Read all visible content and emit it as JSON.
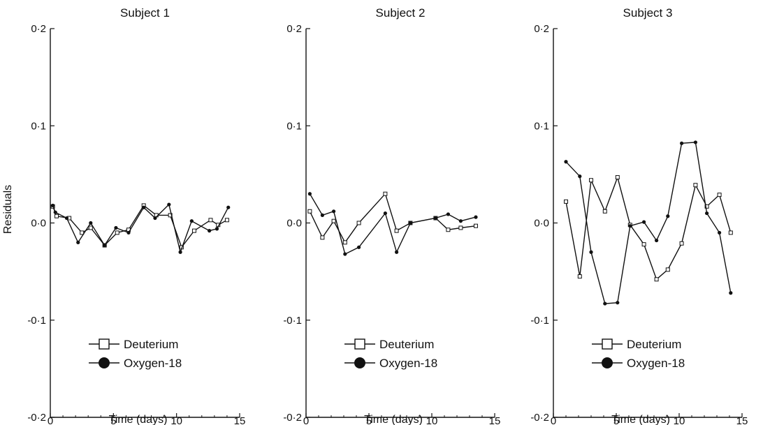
{
  "chart_data": {
    "type": "line",
    "ylabel": "Residuals",
    "xlabel": "Time (days)",
    "xlim": [
      0,
      15
    ],
    "ylim": [
      -0.2,
      0.2
    ],
    "x_ticks": [
      "0",
      "5",
      "10",
      "15"
    ],
    "y_ticks": [
      "-0·2",
      "-0·1",
      "0·0",
      "0·1",
      "0·2"
    ],
    "legend": {
      "placement": "bottom-right"
    },
    "line_color": "#111111",
    "panels": [
      {
        "title": "Subject 1",
        "series": [
          {
            "name": "Deuterium",
            "marker": "open-square",
            "x": [
              0.2,
              0.5,
              1.5,
              2.5,
              3.2,
              4.3,
              5.3,
              6.2,
              7.4,
              8.4,
              9.5,
              10.4,
              11.4,
              12.7,
              13.3,
              14.0
            ],
            "y": [
              0.017,
              0.007,
              0.005,
              -0.01,
              -0.005,
              -0.023,
              -0.01,
              -0.007,
              0.018,
              0.008,
              0.008,
              -0.025,
              -0.008,
              0.003,
              -0.002,
              0.003
            ]
          },
          {
            "name": "Oxygen-18",
            "marker": "filled-circle",
            "x": [
              0.2,
              0.4,
              1.3,
              2.2,
              3.2,
              4.3,
              5.2,
              6.2,
              7.4,
              8.3,
              9.4,
              10.3,
              11.2,
              12.6,
              13.2,
              14.1
            ],
            "y": [
              0.018,
              0.011,
              0.005,
              -0.02,
              0.0,
              -0.023,
              -0.005,
              -0.01,
              0.016,
              0.005,
              0.019,
              -0.03,
              0.002,
              -0.008,
              -0.006,
              0.016
            ]
          }
        ]
      },
      {
        "title": "Subject 2",
        "series": [
          {
            "name": "Deuterium",
            "marker": "open-square",
            "x": [
              0.3,
              1.3,
              2.2,
              3.1,
              4.2,
              6.3,
              7.2,
              8.3,
              10.3,
              11.3,
              12.3,
              13.5
            ],
            "y": [
              0.012,
              -0.015,
              0.002,
              -0.02,
              0.0,
              0.03,
              -0.008,
              0.0,
              0.005,
              -0.007,
              -0.005,
              -0.003
            ]
          },
          {
            "name": "Oxygen-18",
            "marker": "filled-circle",
            "x": [
              0.3,
              1.3,
              2.2,
              3.1,
              4.2,
              6.3,
              7.2,
              8.3,
              10.3,
              11.3,
              12.3,
              13.5
            ],
            "y": [
              0.03,
              0.008,
              0.012,
              -0.032,
              -0.025,
              0.01,
              -0.03,
              0.0,
              0.005,
              0.009,
              0.002,
              0.006
            ]
          }
        ]
      },
      {
        "title": "Subject 3",
        "series": [
          {
            "name": "Deuterium",
            "marker": "open-square",
            "x": [
              1.0,
              2.1,
              3.0,
              4.1,
              5.1,
              6.1,
              7.2,
              8.2,
              9.1,
              10.2,
              11.3,
              12.2,
              13.2,
              14.1
            ],
            "y": [
              0.022,
              -0.055,
              0.044,
              0.012,
              0.047,
              -0.002,
              -0.022,
              -0.058,
              -0.048,
              -0.021,
              0.039,
              0.017,
              0.029,
              -0.01
            ]
          },
          {
            "name": "Oxygen-18",
            "marker": "filled-circle",
            "x": [
              1.0,
              2.1,
              3.0,
              4.1,
              5.1,
              6.1,
              7.2,
              8.2,
              9.1,
              10.2,
              11.3,
              12.2,
              13.2,
              14.1
            ],
            "y": [
              0.063,
              0.048,
              -0.03,
              -0.083,
              -0.082,
              -0.003,
              0.001,
              -0.018,
              0.007,
              0.082,
              0.083,
              0.01,
              -0.01,
              -0.072
            ]
          }
        ]
      }
    ]
  }
}
